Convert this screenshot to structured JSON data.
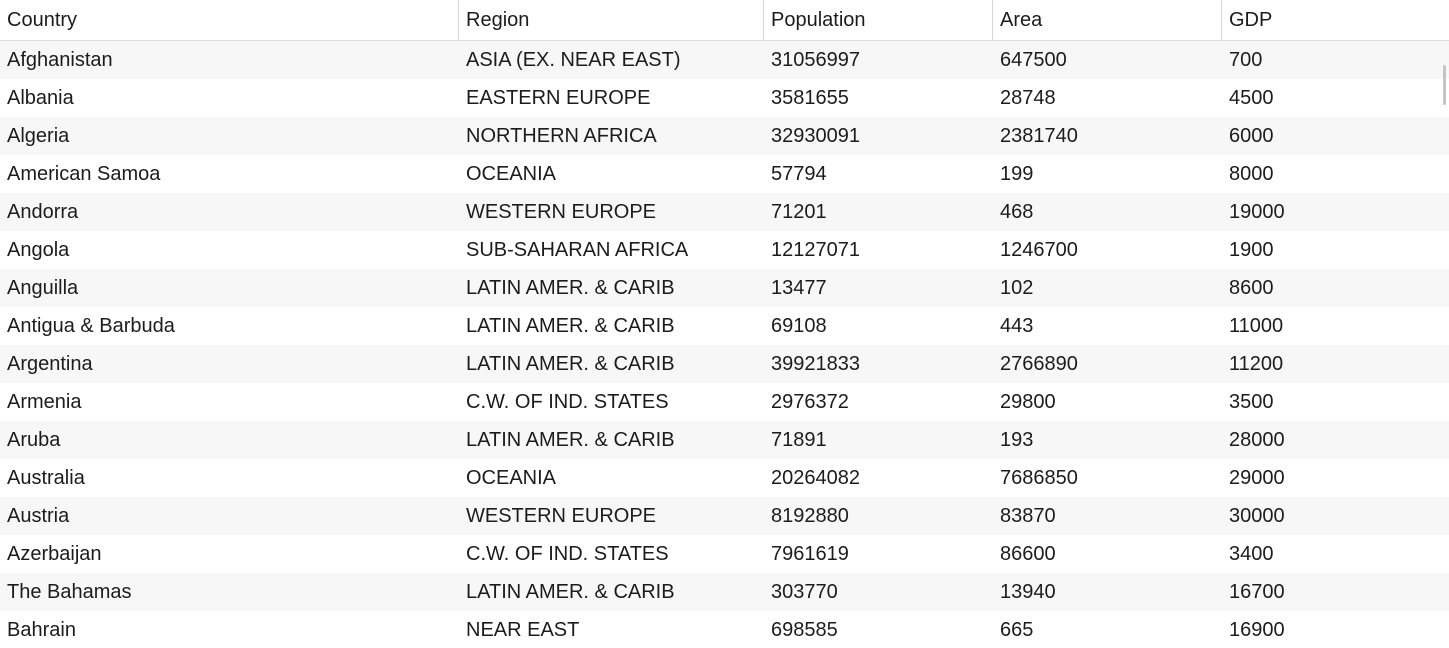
{
  "columns": [
    "Country",
    "Region",
    "Population",
    "Area",
    "GDP"
  ],
  "rows": [
    [
      "Afghanistan",
      "ASIA (EX. NEAR EAST)",
      "31056997",
      "647500",
      "700"
    ],
    [
      "Albania",
      "EASTERN EUROPE",
      "3581655",
      "28748",
      "4500"
    ],
    [
      "Algeria",
      "NORTHERN AFRICA",
      "32930091",
      "2381740",
      "6000"
    ],
    [
      "American Samoa",
      "OCEANIA",
      "57794",
      "199",
      "8000"
    ],
    [
      "Andorra",
      "WESTERN EUROPE",
      "71201",
      "468",
      "19000"
    ],
    [
      "Angola",
      "SUB-SAHARAN AFRICA",
      "12127071",
      "1246700",
      "1900"
    ],
    [
      "Anguilla",
      "LATIN AMER. & CARIB",
      "13477",
      "102",
      "8600"
    ],
    [
      "Antigua & Barbuda",
      "LATIN AMER. & CARIB",
      "69108",
      "443",
      "11000"
    ],
    [
      "Argentina",
      "LATIN AMER. & CARIB",
      "39921833",
      "2766890",
      "11200"
    ],
    [
      "Armenia",
      "C.W. OF IND. STATES",
      "2976372",
      "29800",
      "3500"
    ],
    [
      "Aruba",
      "LATIN AMER. & CARIB",
      "71891",
      "193",
      "28000"
    ],
    [
      "Australia",
      "OCEANIA",
      "20264082",
      "7686850",
      "29000"
    ],
    [
      "Austria",
      "WESTERN EUROPE",
      "8192880",
      "83870",
      "30000"
    ],
    [
      "Azerbaijan",
      "C.W. OF IND. STATES",
      "7961619",
      "86600",
      "3400"
    ],
    [
      "The Bahamas",
      "LATIN AMER. & CARIB",
      "303770",
      "13940",
      "16700"
    ],
    [
      "Bahrain",
      "NEAR EAST",
      "698585",
      "665",
      "16900"
    ]
  ]
}
